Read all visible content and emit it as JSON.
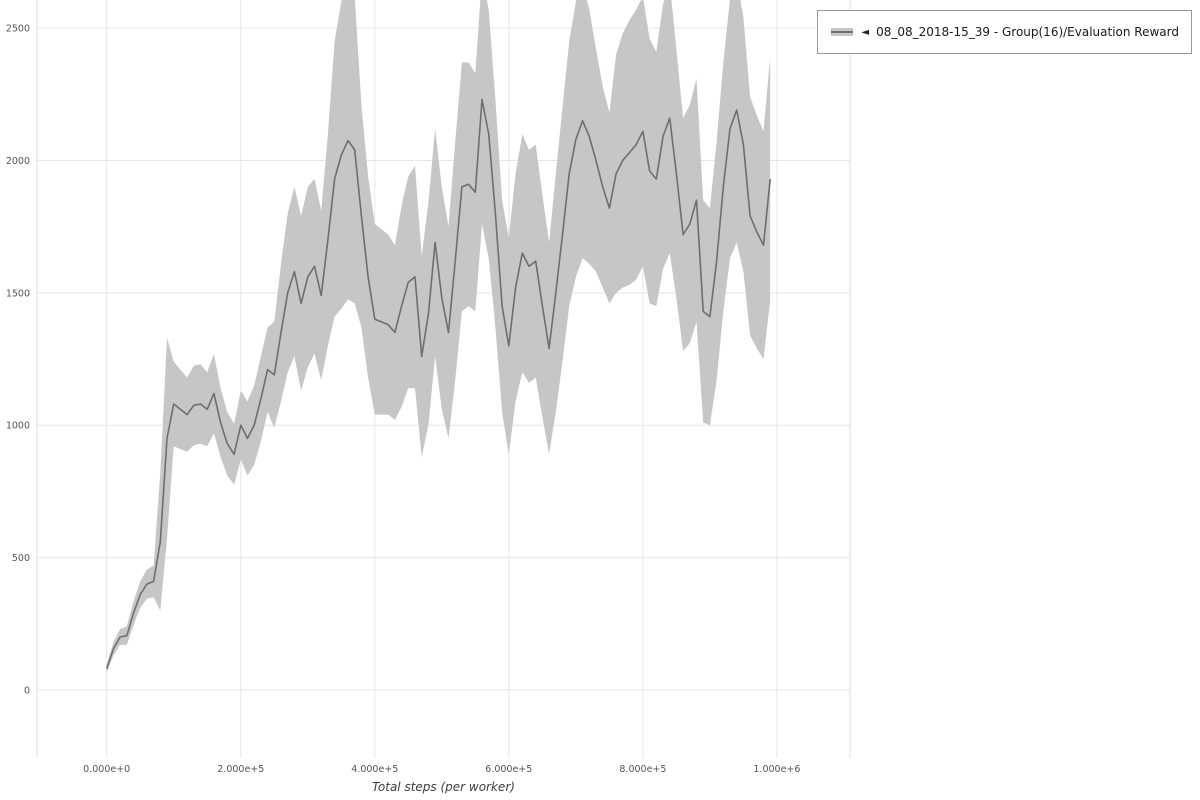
{
  "legend": {
    "marker": "◄",
    "label": "08_08_2018-15_39 - Group(16)/Evaluation Reward",
    "swatch_fill": "#c6c6c6",
    "swatch_line": "#6e6e6e"
  },
  "chart_data": {
    "type": "line",
    "title": "",
    "xlabel": "Total steps (per worker)",
    "ylabel": "",
    "legend_position": "top-right",
    "grid": true,
    "xlim": [
      -104000,
      1109000
    ],
    "ylim": [
      -257,
      2606
    ],
    "x_ticks": [
      0,
      200000,
      400000,
      600000,
      800000,
      1000000
    ],
    "x_tick_labels": [
      "0.000e+0",
      "2.000e+5",
      "4.000e+5",
      "6.000e+5",
      "8.000e+5",
      "1.000e+6"
    ],
    "y_ticks": [
      0,
      500,
      1000,
      1500,
      2000,
      2500
    ],
    "line_color": "#6e6e6e",
    "band_color": "#c6c6c6",
    "band_opacity": 1,
    "grid_color": "#e6e6e6",
    "frame_color": "#dcdcdc",
    "tick_color": "#555555",
    "series": [
      {
        "name": "08_08_2018-15_39 - Group(16)/Evaluation Reward",
        "x": [
          0,
          10000,
          20000,
          30000,
          40000,
          50000,
          60000,
          70000,
          80000,
          90000,
          100000,
          110000,
          120000,
          130000,
          140000,
          150000,
          160000,
          170000,
          180000,
          190000,
          200000,
          210000,
          220000,
          230000,
          240000,
          250000,
          260000,
          270000,
          280000,
          290000,
          300000,
          310000,
          320000,
          330000,
          340000,
          350000,
          360000,
          370000,
          380000,
          390000,
          400000,
          410000,
          420000,
          430000,
          440000,
          450000,
          460000,
          470000,
          480000,
          490000,
          500000,
          510000,
          520000,
          530000,
          540000,
          550000,
          560000,
          570000,
          580000,
          590000,
          600000,
          610000,
          620000,
          630000,
          640000,
          650000,
          660000,
          670000,
          680000,
          690000,
          700000,
          710000,
          720000,
          730000,
          740000,
          750000,
          760000,
          770000,
          780000,
          790000,
          800000,
          810000,
          820000,
          830000,
          840000,
          850000,
          860000,
          870000,
          880000,
          890000,
          900000,
          910000,
          920000,
          930000,
          940000,
          950000,
          960000,
          970000,
          980000,
          990000
        ],
        "mean": [
          80,
          155,
          200,
          205,
          290,
          360,
          400,
          410,
          560,
          950,
          1080,
          1060,
          1040,
          1075,
          1080,
          1060,
          1120,
          1010,
          930,
          890,
          1000,
          950,
          1000,
          1100,
          1210,
          1190,
          1350,
          1500,
          1580,
          1460,
          1560,
          1600,
          1490,
          1700,
          1930,
          2020,
          2075,
          2040,
          1790,
          1560,
          1400,
          1390,
          1380,
          1350,
          1450,
          1540,
          1560,
          1260,
          1420,
          1690,
          1480,
          1350,
          1620,
          1900,
          1910,
          1880,
          2230,
          2100,
          1800,
          1450,
          1300,
          1520,
          1650,
          1600,
          1620,
          1450,
          1290,
          1500,
          1720,
          1950,
          2080,
          2150,
          2090,
          2000,
          1900,
          1820,
          1950,
          2000,
          2030,
          2060,
          2110,
          1960,
          1930,
          2090,
          2160,
          1950,
          1720,
          1760,
          1850,
          1430,
          1410,
          1620,
          1900,
          2120,
          2190,
          2060,
          1790,
          1730,
          1680,
          1930
        ],
        "band_halfwidth": [
          15,
          25,
          30,
          35,
          45,
          50,
          55,
          60,
          260,
          380,
          160,
          150,
          140,
          150,
          150,
          140,
          150,
          130,
          120,
          115,
          130,
          140,
          150,
          160,
          160,
          200,
          260,
          300,
          320,
          330,
          340,
          330,
          320,
          400,
          520,
          580,
          600,
          580,
          420,
          380,
          360,
          350,
          340,
          330,
          380,
          400,
          420,
          380,
          420,
          430,
          420,
          400,
          450,
          470,
          460,
          450,
          470,
          470,
          430,
          400,
          410,
          430,
          450,
          440,
          440,
          420,
          400,
          450,
          480,
          500,
          520,
          520,
          480,
          420,
          380,
          360,
          450,
          480,
          500,
          510,
          510,
          500,
          480,
          500,
          510,
          470,
          440,
          450,
          460,
          420,
          410,
          450,
          470,
          490,
          500,
          480,
          450,
          440,
          430,
          460
        ]
      }
    ]
  }
}
